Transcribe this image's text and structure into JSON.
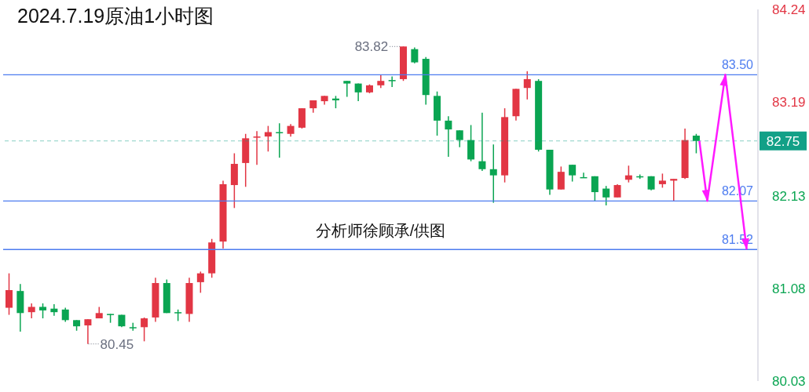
{
  "chart_data": {
    "type": "candlestick",
    "title": "2024.7.19原油1小时图",
    "categories": [
      null,
      null,
      null,
      null,
      null,
      null,
      null,
      null,
      null,
      null,
      null,
      null,
      null,
      null,
      null,
      null,
      null,
      null,
      null,
      null,
      null,
      null,
      null,
      null,
      null,
      null,
      null,
      null,
      null,
      null,
      null,
      null,
      null,
      null,
      null,
      null,
      null,
      null,
      null,
      null,
      null,
      null,
      null,
      null,
      null,
      null,
      null,
      null,
      null,
      null,
      null,
      null,
      null,
      null,
      null,
      null,
      null,
      null,
      null,
      null,
      null,
      null
    ],
    "ohlc": [
      [
        80.86,
        81.25,
        80.78,
        81.06
      ],
      [
        81.05,
        81.13,
        80.59,
        80.8
      ],
      [
        80.81,
        80.91,
        80.74,
        80.87
      ],
      [
        80.87,
        80.91,
        80.74,
        80.83
      ],
      [
        80.85,
        80.9,
        80.77,
        80.81
      ],
      [
        80.84,
        80.86,
        80.7,
        80.72
      ],
      [
        80.72,
        80.72,
        80.6,
        80.65
      ],
      [
        80.66,
        80.73,
        80.45,
        80.73
      ],
      [
        80.74,
        80.87,
        80.74,
        80.8
      ],
      [
        80.79,
        80.79,
        80.69,
        80.78
      ],
      [
        80.78,
        80.78,
        80.64,
        80.65
      ],
      [
        80.64,
        80.69,
        80.6,
        80.63
      ],
      [
        80.64,
        80.75,
        80.48,
        80.74
      ],
      [
        80.75,
        81.2,
        80.7,
        81.14
      ],
      [
        81.14,
        81.18,
        80.8,
        80.8
      ],
      [
        80.81,
        80.84,
        80.71,
        80.8
      ],
      [
        80.79,
        81.2,
        80.7,
        81.14
      ],
      [
        81.15,
        81.27,
        81.03,
        81.25
      ],
      [
        81.25,
        81.64,
        81.2,
        81.6
      ],
      [
        81.61,
        82.3,
        81.53,
        82.26
      ],
      [
        82.25,
        82.61,
        81.99,
        82.49
      ],
      [
        82.5,
        82.83,
        82.23,
        82.78
      ],
      [
        82.79,
        82.86,
        82.48,
        82.8
      ],
      [
        82.8,
        82.92,
        82.63,
        82.85
      ],
      [
        82.85,
        82.95,
        82.56,
        82.84
      ],
      [
        82.83,
        82.94,
        82.8,
        82.92
      ],
      [
        82.9,
        83.12,
        82.89,
        83.12
      ],
      [
        83.12,
        83.21,
        83.07,
        83.21
      ],
      [
        83.2,
        83.26,
        83.16,
        83.26
      ],
      [
        83.23,
        83.26,
        83.12,
        83.21
      ],
      [
        83.43,
        83.43,
        83.25,
        83.4
      ],
      [
        83.4,
        83.4,
        83.2,
        83.3
      ],
      [
        83.3,
        83.39,
        83.29,
        83.38
      ],
      [
        83.38,
        83.5,
        83.35,
        83.43
      ],
      [
        83.44,
        83.48,
        83.36,
        83.43
      ],
      [
        83.45,
        83.82,
        83.43,
        83.82
      ],
      [
        83.79,
        83.81,
        83.63,
        83.64
      ],
      [
        83.68,
        83.7,
        83.16,
        83.27
      ],
      [
        83.26,
        83.31,
        82.81,
        82.98
      ],
      [
        82.98,
        83.03,
        82.57,
        82.88
      ],
      [
        82.87,
        82.87,
        82.68,
        82.76
      ],
      [
        82.76,
        82.93,
        82.52,
        82.54
      ],
      [
        82.52,
        83.07,
        82.41,
        82.43
      ],
      [
        82.43,
        82.71,
        82.05,
        82.36
      ],
      [
        82.36,
        83.12,
        82.28,
        83.02
      ],
      [
        83.03,
        83.34,
        82.98,
        83.34
      ],
      [
        83.35,
        83.54,
        83.22,
        83.45
      ],
      [
        83.43,
        83.45,
        82.63,
        82.65
      ],
      [
        82.65,
        82.65,
        82.14,
        82.2
      ],
      [
        82.2,
        82.46,
        82.2,
        82.4
      ],
      [
        82.48,
        82.48,
        82.29,
        82.36
      ],
      [
        82.34,
        82.39,
        82.33,
        82.33
      ],
      [
        82.35,
        82.35,
        82.07,
        82.17
      ],
      [
        82.21,
        82.24,
        82.02,
        82.11
      ],
      [
        82.11,
        82.26,
        82.11,
        82.25
      ],
      [
        82.31,
        82.47,
        82.28,
        82.36
      ],
      [
        82.35,
        82.37,
        82.32,
        82.34
      ],
      [
        82.35,
        82.35,
        82.19,
        82.2
      ],
      [
        82.26,
        82.38,
        82.22,
        82.3
      ],
      [
        82.3,
        82.32,
        82.07,
        82.32
      ],
      [
        82.33,
        82.89,
        82.32,
        82.76
      ],
      [
        82.81,
        82.83,
        82.61,
        82.75
      ]
    ],
    "colors": [
      "#e23644",
      "#0aa552",
      "#e23644",
      "#0aa552",
      "#0aa552",
      "#0aa552",
      "#0aa552",
      "#e23644",
      "#e23644",
      "#0aa552",
      "#0aa552",
      "#0aa552",
      "#e23644",
      "#e23644",
      "#0aa552",
      "#0aa552",
      "#e23644",
      "#e23644",
      "#e23644",
      "#e23644",
      "#e23644",
      "#e23644",
      "#e23644",
      "#e23644",
      "#0aa552",
      "#e23644",
      "#e23644",
      "#e23644",
      "#e23644",
      "#0aa552",
      "#0aa552",
      "#0aa552",
      "#e23644",
      "#e23644",
      "#0aa552",
      "#e23644",
      "#0aa552",
      "#0aa552",
      "#0aa552",
      "#0aa552",
      "#0aa552",
      "#0aa552",
      "#0aa552",
      "#0aa552",
      "#e23644",
      "#e23644",
      "#e23644",
      "#0aa552",
      "#0aa552",
      "#e23644",
      "#0aa552",
      "#0aa552",
      "#0aa552",
      "#0aa552",
      "#e23644",
      "#e23644",
      "#0aa552",
      "#0aa552",
      "#e23644",
      "#e23644",
      "#e23644",
      "#0aa552"
    ],
    "ylim": [
      80.03,
      84.24
    ],
    "yticks": [
      84.24,
      83.19,
      82.13,
      81.08,
      80.03
    ],
    "tick_labels": "y",
    "ref_lines": [
      {
        "axis": "y",
        "value": 83.5,
        "label": "83.50",
        "color": "#4d7cf0"
      },
      {
        "axis": "y",
        "value": 82.07,
        "label": "82.07",
        "color": "#4d7cf0"
      },
      {
        "axis": "y",
        "value": 81.52,
        "label": "81.52",
        "color": "#4d7cf0"
      },
      {
        "axis": "y",
        "value": 82.75,
        "label": "82.75",
        "color": "#12a087",
        "line_style": "dashed"
      }
    ],
    "annotations": [
      "83.82",
      "80.45",
      "分析师徐顾承/供图"
    ]
  }
}
